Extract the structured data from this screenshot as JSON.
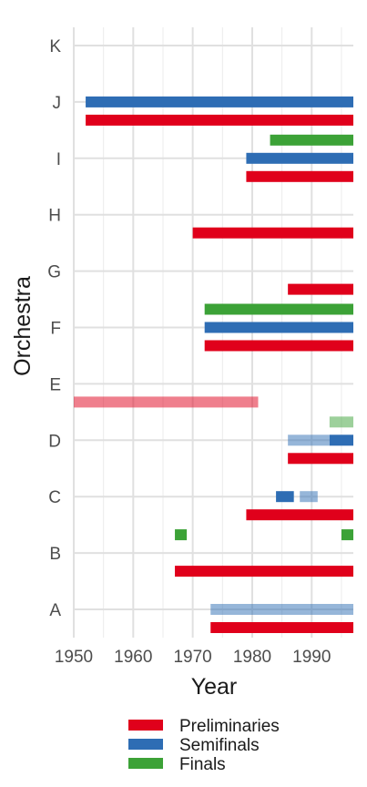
{
  "chart_data": {
    "type": "gantt",
    "title": "",
    "xlabel": "Year",
    "ylabel": "Orchestra",
    "xlim": [
      1950,
      1997
    ],
    "x_ticks": [
      1950,
      1960,
      1970,
      1980,
      1990
    ],
    "categories": [
      "A",
      "B",
      "C",
      "D",
      "E",
      "F",
      "G",
      "H",
      "I",
      "J",
      "K"
    ],
    "grid": true,
    "legend_position": "bottom",
    "series": [
      {
        "name": "Preliminaries",
        "color": "#E0001B"
      },
      {
        "name": "Semifinals",
        "color": "#2E6DB4"
      },
      {
        "name": "Finals",
        "color": "#3CA237"
      }
    ],
    "segments": [
      {
        "orchestra": "A",
        "series": "Preliminaries",
        "start": 1973,
        "end": 1997,
        "faded": false
      },
      {
        "orchestra": "A",
        "series": "Semifinals",
        "start": 1973,
        "end": 1997,
        "faded": true
      },
      {
        "orchestra": "B",
        "series": "Preliminaries",
        "start": 1967,
        "end": 1997,
        "faded": false
      },
      {
        "orchestra": "B",
        "series": "Finals",
        "start": 1967,
        "end": 1969,
        "faded": false
      },
      {
        "orchestra": "B",
        "series": "Finals",
        "start": 1995,
        "end": 1997,
        "faded": false
      },
      {
        "orchestra": "C",
        "series": "Preliminaries",
        "start": 1979,
        "end": 1997,
        "faded": false
      },
      {
        "orchestra": "C",
        "series": "Semifinals",
        "start": 1984,
        "end": 1987,
        "faded": false
      },
      {
        "orchestra": "C",
        "series": "Semifinals",
        "start": 1988,
        "end": 1991,
        "faded": true
      },
      {
        "orchestra": "D",
        "series": "Preliminaries",
        "start": 1986,
        "end": 1997,
        "faded": false
      },
      {
        "orchestra": "D",
        "series": "Semifinals",
        "start": 1986,
        "end": 1993,
        "faded": true
      },
      {
        "orchestra": "D",
        "series": "Semifinals",
        "start": 1993,
        "end": 1997,
        "faded": false
      },
      {
        "orchestra": "D",
        "series": "Finals",
        "start": 1993,
        "end": 1997,
        "faded": true
      },
      {
        "orchestra": "E",
        "series": "Preliminaries",
        "start": 1950,
        "end": 1981,
        "faded": true
      },
      {
        "orchestra": "F",
        "series": "Preliminaries",
        "start": 1972,
        "end": 1997,
        "faded": false
      },
      {
        "orchestra": "F",
        "series": "Semifinals",
        "start": 1972,
        "end": 1997,
        "faded": false
      },
      {
        "orchestra": "F",
        "series": "Finals",
        "start": 1972,
        "end": 1997,
        "faded": false
      },
      {
        "orchestra": "G",
        "series": "Preliminaries",
        "start": 1986,
        "end": 1997,
        "faded": false
      },
      {
        "orchestra": "H",
        "series": "Preliminaries",
        "start": 1970,
        "end": 1997,
        "faded": false
      },
      {
        "orchestra": "I",
        "series": "Preliminaries",
        "start": 1979,
        "end": 1997,
        "faded": false
      },
      {
        "orchestra": "I",
        "series": "Semifinals",
        "start": 1979,
        "end": 1997,
        "faded": false
      },
      {
        "orchestra": "I",
        "series": "Finals",
        "start": 1983,
        "end": 1997,
        "faded": false
      },
      {
        "orchestra": "J",
        "series": "Preliminaries",
        "start": 1952,
        "end": 1997,
        "faded": false
      },
      {
        "orchestra": "J",
        "series": "Semifinals",
        "start": 1952,
        "end": 1997,
        "faded": false
      }
    ]
  }
}
